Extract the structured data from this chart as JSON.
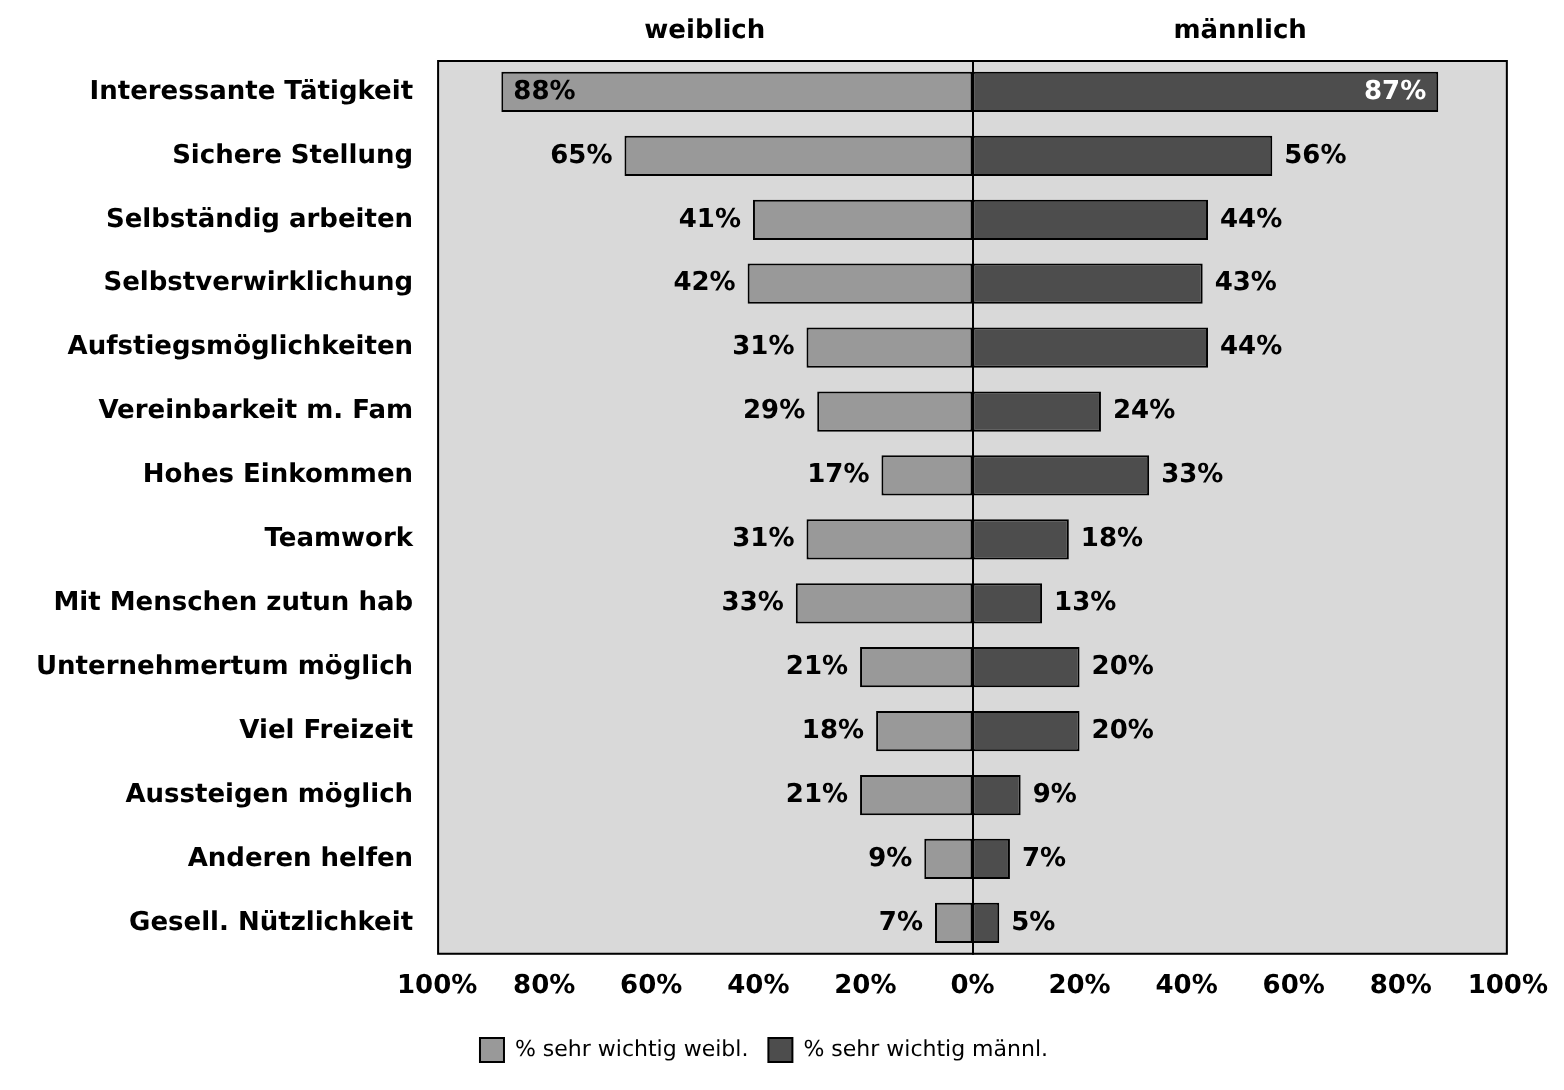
{
  "chart_data": {
    "type": "bar",
    "orientation": "horizontal",
    "categories": [
      "Interessante Tätigkeit",
      "Sichere Stellung",
      "Selbständig arbeiten",
      "Selbstverwirklichung",
      "Aufstiegsmöglichkeiten",
      "Vereinbarkeit m. Fam",
      "Hohes Einkommen",
      "Teamwork",
      "Mit Menschen zutun hab",
      "Unternehmertum möglich",
      "Viel Freizeit",
      "Aussteigen möglich",
      "Anderen helfen",
      "Gesell. Nützlichkeit"
    ],
    "series": [
      {
        "name": "% sehr wichtig weibl.",
        "color": "#999999",
        "values": [
          88,
          65,
          41,
          42,
          31,
          29,
          17,
          31,
          33,
          21,
          18,
          21,
          9,
          7
        ],
        "base": [
          -88,
          -65,
          -41,
          -42,
          -31,
          -29,
          -17,
          -31,
          -33,
          -21,
          -18,
          -21,
          -9,
          -7
        ],
        "value_labels": [
          "88%",
          "65%",
          "41%",
          "42%",
          "31%",
          "29%",
          "17%",
          "31%",
          "33%",
          "21%",
          "18%",
          "21%",
          "9%",
          "7%"
        ]
      },
      {
        "name": "% sehr wichtig männl.",
        "color": "#4d4d4d",
        "values": [
          87,
          56,
          44,
          43,
          44,
          24,
          33,
          18,
          13,
          20,
          20,
          9,
          7,
          5
        ],
        "value_labels": [
          "87%",
          "56%",
          "44%",
          "43%",
          "44%",
          "24%",
          "33%",
          "18%",
          "13%",
          "20%",
          "20%",
          "9%",
          "7%",
          "5%"
        ]
      }
    ],
    "xlim": [
      -100,
      100
    ],
    "xticks": [
      {
        "value": -100,
        "label": "100%"
      },
      {
        "value": -80,
        "label": "80%"
      },
      {
        "value": -60,
        "label": "60%"
      },
      {
        "value": -40,
        "label": "40%"
      },
      {
        "value": -20,
        "label": "20%"
      },
      {
        "value": 0,
        "label": "0%"
      },
      {
        "value": 20,
        "label": "20%"
      },
      {
        "value": 40,
        "label": "40%"
      },
      {
        "value": 60,
        "label": "60%"
      },
      {
        "value": 80,
        "label": "80%"
      },
      {
        "value": 100,
        "label": "100%"
      }
    ],
    "grid": false,
    "legend": "bottom",
    "ref_lines": [
      {
        "axis": "x",
        "value": 0,
        "color": "#000000"
      }
    ],
    "annotations": [
      "weiblich",
      "männlich"
    ]
  }
}
